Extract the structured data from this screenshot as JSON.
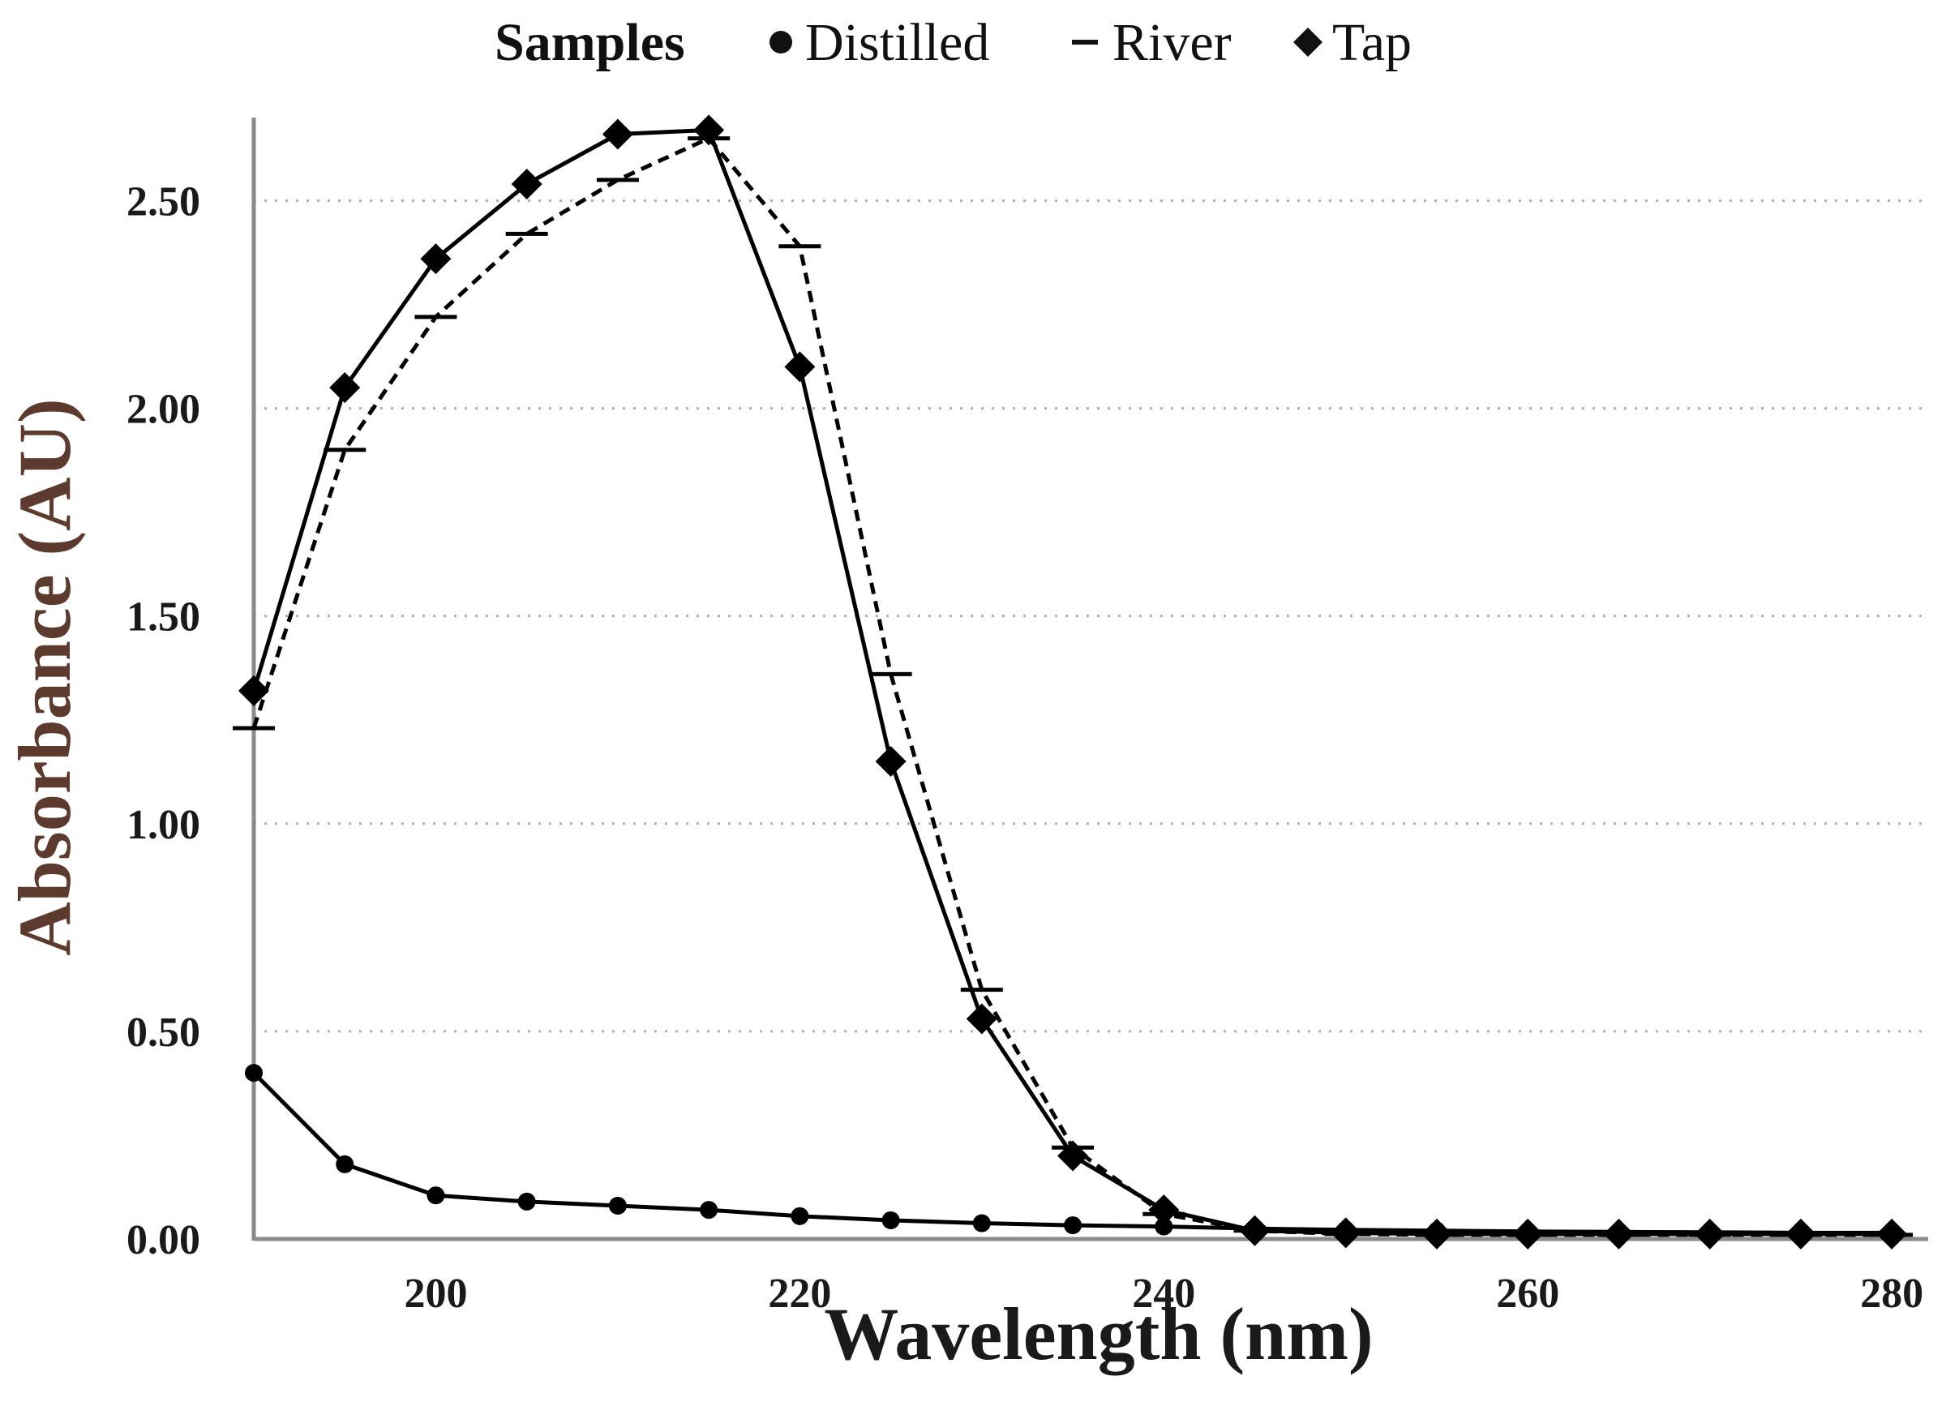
{
  "chart_data": {
    "type": "line",
    "title": "",
    "legend_title": "Samples",
    "legend_position": "top",
    "xlabel": "Wavelength (nm)",
    "ylabel": "Absorbance (AU)",
    "xlim": [
      190,
      282
    ],
    "ylim": [
      0,
      2.7
    ],
    "xticks": [
      "200",
      "220",
      "240",
      "260",
      "280"
    ],
    "xtick_values": [
      200,
      220,
      240,
      260,
      280
    ],
    "yticks": [
      "0.00",
      "0.50",
      "1.00",
      "1.50",
      "2.00",
      "2.50"
    ],
    "ytick_values": [
      0,
      0.5,
      1.0,
      1.5,
      2.0,
      2.5
    ],
    "grid": "horizontal-dotted",
    "x": [
      190,
      195,
      200,
      205,
      210,
      215,
      220,
      225,
      230,
      235,
      240,
      245,
      250,
      255,
      260,
      265,
      270,
      275,
      280
    ],
    "series": [
      {
        "name": "Distilled",
        "marker": "circle",
        "line": "solid",
        "values": [
          0.4,
          0.18,
          0.105,
          0.09,
          0.08,
          0.07,
          0.055,
          0.045,
          0.038,
          0.033,
          0.03,
          0.025,
          0.022,
          0.02,
          0.018,
          0.017,
          0.016,
          0.015,
          0.015
        ]
      },
      {
        "name": "River",
        "marker": "dash",
        "line": "dashed",
        "values": [
          1.23,
          1.9,
          2.22,
          2.42,
          2.55,
          2.65,
          2.39,
          1.36,
          0.6,
          0.22,
          0.06,
          0.02,
          0.012,
          0.01,
          0.01,
          0.01,
          0.01,
          0.01,
          0.01
        ]
      },
      {
        "name": "Tap",
        "marker": "diamond",
        "line": "solid",
        "values": [
          1.32,
          2.05,
          2.36,
          2.54,
          2.66,
          2.67,
          2.1,
          1.15,
          0.53,
          0.2,
          0.07,
          0.02,
          0.015,
          0.012,
          0.012,
          0.012,
          0.012,
          0.012,
          0.012
        ]
      }
    ]
  }
}
